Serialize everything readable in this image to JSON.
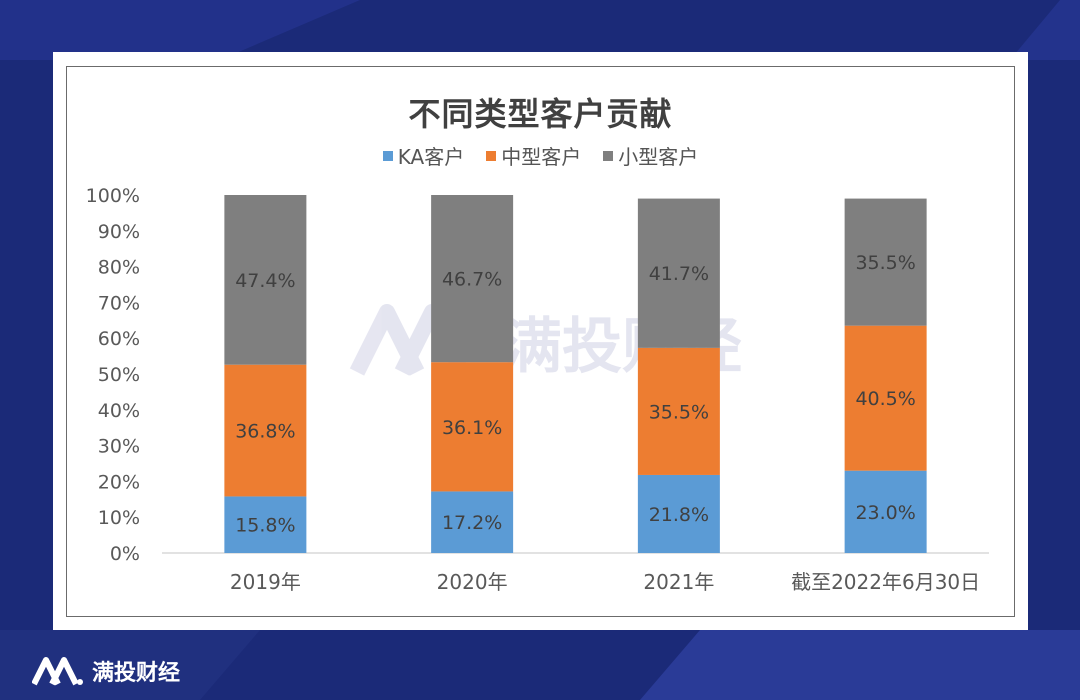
{
  "brand": {
    "name": "满投财经",
    "logo_icon": "m-logo-icon"
  },
  "watermark": {
    "text": "满投财经",
    "icon": "m-logo-icon"
  },
  "colors": {
    "ka": "#5b9bd5",
    "mid": "#ed7d31",
    "small": "#7f7f7f",
    "background": "#1b2a78"
  },
  "chart_data": {
    "type": "bar",
    "stacked": true,
    "title": "不同类型客户贡献",
    "xlabel": "",
    "ylabel": "",
    "ylim": [
      0,
      100
    ],
    "yticks": [
      "0%",
      "10%",
      "20%",
      "30%",
      "40%",
      "50%",
      "60%",
      "70%",
      "80%",
      "90%",
      "100%"
    ],
    "categories": [
      "2019年",
      "2020年",
      "2021年",
      "截至2022年6月30日"
    ],
    "legend_position": "top",
    "grid": false,
    "series": [
      {
        "name": "KA客户",
        "values": [
          15.8,
          17.2,
          21.8,
          23.0
        ],
        "labels": [
          "15.8%",
          "17.2%",
          "21.8%",
          "23.0%"
        ]
      },
      {
        "name": "中型客户",
        "values": [
          36.8,
          36.1,
          35.5,
          40.5
        ],
        "labels": [
          "36.8%",
          "36.1%",
          "35.5%",
          "40.5%"
        ]
      },
      {
        "name": "小型客户",
        "values": [
          47.4,
          46.7,
          41.7,
          35.5
        ],
        "labels": [
          "47.4%",
          "46.7%",
          "41.7%",
          "35.5%"
        ]
      }
    ]
  }
}
